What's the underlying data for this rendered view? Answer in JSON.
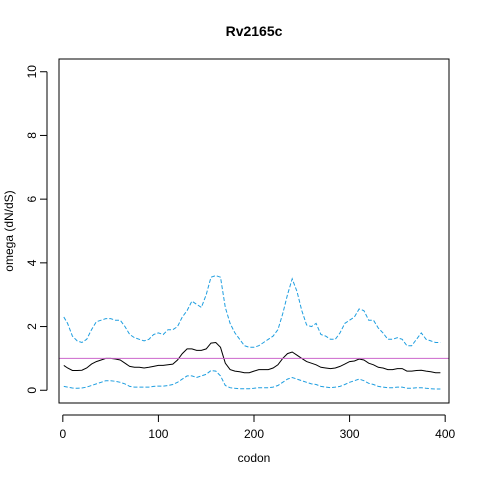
{
  "chart_data": {
    "type": "line",
    "title": "Rv2165c",
    "xlabel": "codon",
    "ylabel": "omega (dN/dS)",
    "xlim": [
      -4,
      404
    ],
    "ylim": [
      -0.4,
      10.4
    ],
    "x_ticks": [
      0,
      100,
      200,
      300,
      400
    ],
    "y_ticks": [
      0,
      2,
      4,
      6,
      8,
      10
    ],
    "grid": false,
    "legend": "none",
    "reference_line": {
      "y": 1,
      "color": "#cc66cc"
    },
    "series": [
      {
        "role": "upper",
        "color": "#1e9ee0",
        "style": "dashed",
        "x": [
          1,
          5,
          10,
          15,
          20,
          25,
          30,
          35,
          40,
          45,
          50,
          55,
          60,
          65,
          70,
          75,
          80,
          85,
          90,
          95,
          100,
          105,
          110,
          115,
          120,
          125,
          130,
          135,
          140,
          145,
          150,
          155,
          160,
          165,
          170,
          175,
          180,
          185,
          190,
          195,
          200,
          205,
          210,
          215,
          220,
          225,
          230,
          235,
          240,
          245,
          250,
          255,
          260,
          265,
          270,
          275,
          280,
          285,
          290,
          295,
          300,
          305,
          310,
          315,
          320,
          325,
          330,
          335,
          340,
          345,
          350,
          355,
          360,
          365,
          370,
          375,
          380,
          385,
          390,
          395
        ],
        "y": [
          2.3,
          2.1,
          1.7,
          1.55,
          1.5,
          1.6,
          1.9,
          2.15,
          2.2,
          2.25,
          2.25,
          2.2,
          2.2,
          2.0,
          1.75,
          1.65,
          1.6,
          1.55,
          1.6,
          1.75,
          1.8,
          1.75,
          1.9,
          1.9,
          2.0,
          2.3,
          2.5,
          2.8,
          2.7,
          2.6,
          3.0,
          3.55,
          3.6,
          3.55,
          2.6,
          2.1,
          1.8,
          1.6,
          1.4,
          1.35,
          1.35,
          1.4,
          1.5,
          1.6,
          1.7,
          1.9,
          2.4,
          3.0,
          3.5,
          3.1,
          2.5,
          2.05,
          2.0,
          2.1,
          1.75,
          1.7,
          1.6,
          1.6,
          1.8,
          2.1,
          2.2,
          2.3,
          2.55,
          2.5,
          2.2,
          2.2,
          1.95,
          1.8,
          1.6,
          1.6,
          1.65,
          1.6,
          1.4,
          1.4,
          1.6,
          1.8,
          1.6,
          1.55,
          1.5,
          1.5
        ]
      },
      {
        "role": "estimate",
        "color": "#000000",
        "style": "solid",
        "x": [
          1,
          5,
          10,
          15,
          20,
          25,
          30,
          35,
          40,
          45,
          50,
          55,
          60,
          65,
          70,
          75,
          80,
          85,
          90,
          95,
          100,
          105,
          110,
          115,
          120,
          125,
          130,
          135,
          140,
          145,
          150,
          155,
          160,
          165,
          170,
          175,
          180,
          185,
          190,
          195,
          200,
          205,
          210,
          215,
          220,
          225,
          230,
          235,
          240,
          245,
          250,
          255,
          260,
          265,
          270,
          275,
          280,
          285,
          290,
          295,
          300,
          305,
          310,
          315,
          320,
          325,
          330,
          335,
          340,
          345,
          350,
          355,
          360,
          365,
          370,
          375,
          380,
          385,
          390,
          395
        ],
        "y": [
          0.78,
          0.7,
          0.62,
          0.62,
          0.63,
          0.7,
          0.82,
          0.9,
          0.95,
          1.0,
          1.0,
          0.98,
          0.95,
          0.85,
          0.75,
          0.72,
          0.72,
          0.7,
          0.72,
          0.75,
          0.78,
          0.78,
          0.8,
          0.82,
          0.95,
          1.15,
          1.3,
          1.3,
          1.25,
          1.25,
          1.3,
          1.48,
          1.5,
          1.35,
          0.85,
          0.65,
          0.6,
          0.58,
          0.55,
          0.55,
          0.6,
          0.65,
          0.65,
          0.65,
          0.7,
          0.8,
          1.0,
          1.15,
          1.2,
          1.1,
          1.0,
          0.9,
          0.85,
          0.8,
          0.72,
          0.7,
          0.68,
          0.7,
          0.75,
          0.82,
          0.9,
          0.92,
          0.98,
          0.95,
          0.85,
          0.8,
          0.72,
          0.7,
          0.65,
          0.65,
          0.68,
          0.68,
          0.6,
          0.6,
          0.62,
          0.63,
          0.6,
          0.58,
          0.55,
          0.55
        ]
      },
      {
        "role": "lower",
        "color": "#1e9ee0",
        "style": "dashed",
        "x": [
          1,
          5,
          10,
          15,
          20,
          25,
          30,
          35,
          40,
          45,
          50,
          55,
          60,
          65,
          70,
          75,
          80,
          85,
          90,
          95,
          100,
          105,
          110,
          115,
          120,
          125,
          130,
          135,
          140,
          145,
          150,
          155,
          160,
          165,
          170,
          175,
          180,
          185,
          190,
          195,
          200,
          205,
          210,
          215,
          220,
          225,
          230,
          235,
          240,
          245,
          250,
          255,
          260,
          265,
          270,
          275,
          280,
          285,
          290,
          295,
          300,
          305,
          310,
          315,
          320,
          325,
          330,
          335,
          340,
          345,
          350,
          355,
          360,
          365,
          370,
          375,
          380,
          385,
          390,
          395
        ],
        "y": [
          0.12,
          0.1,
          0.07,
          0.06,
          0.07,
          0.1,
          0.15,
          0.2,
          0.25,
          0.3,
          0.3,
          0.28,
          0.25,
          0.2,
          0.12,
          0.1,
          0.1,
          0.1,
          0.1,
          0.12,
          0.13,
          0.13,
          0.15,
          0.18,
          0.25,
          0.35,
          0.45,
          0.45,
          0.4,
          0.45,
          0.5,
          0.62,
          0.6,
          0.45,
          0.15,
          0.08,
          0.06,
          0.05,
          0.05,
          0.05,
          0.06,
          0.08,
          0.08,
          0.08,
          0.1,
          0.15,
          0.25,
          0.35,
          0.4,
          0.35,
          0.3,
          0.25,
          0.2,
          0.18,
          0.12,
          0.1,
          0.08,
          0.1,
          0.12,
          0.18,
          0.25,
          0.3,
          0.35,
          0.3,
          0.22,
          0.18,
          0.12,
          0.1,
          0.08,
          0.08,
          0.1,
          0.1,
          0.06,
          0.06,
          0.08,
          0.08,
          0.06,
          0.05,
          0.04,
          0.04
        ]
      }
    ]
  }
}
